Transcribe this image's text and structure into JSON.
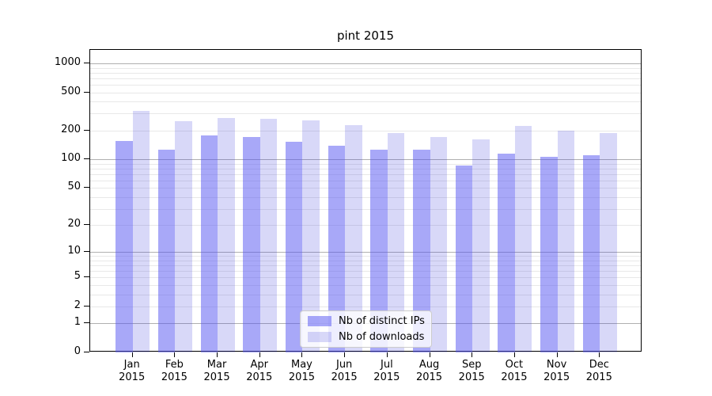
{
  "chart_data": {
    "type": "bar",
    "title": "pint 2015",
    "categories": [
      "Jan",
      "Feb",
      "Mar",
      "Apr",
      "May",
      "Jun",
      "Jul",
      "Aug",
      "Sep",
      "Oct",
      "Nov",
      "Dec"
    ],
    "year": "2015",
    "series": [
      {
        "name": "Nb of distinct IPs",
        "color": "rgba(81,81,241,0.5)",
        "color_hex": "#a8a8f8",
        "values": [
          156,
          127,
          178,
          170,
          152,
          140,
          127,
          125,
          86,
          115,
          107,
          110
        ]
      },
      {
        "name": "Nb of downloads",
        "color": "rgba(60,60,220,0.2)",
        "color_hex": "#d8d8f8",
        "values": [
          320,
          250,
          268,
          266,
          256,
          228,
          190,
          172,
          163,
          225,
          198,
          189
        ]
      }
    ],
    "yscale": "log1p",
    "yticks": [
      0,
      1,
      2,
      5,
      10,
      20,
      50,
      100,
      200,
      500,
      1000
    ],
    "ylim": [
      0,
      1380
    ],
    "grid": true,
    "legend_position": "lower-center",
    "grid_major_color": "#b0b0b0",
    "grid_minor_color": "#e8e8e8"
  }
}
